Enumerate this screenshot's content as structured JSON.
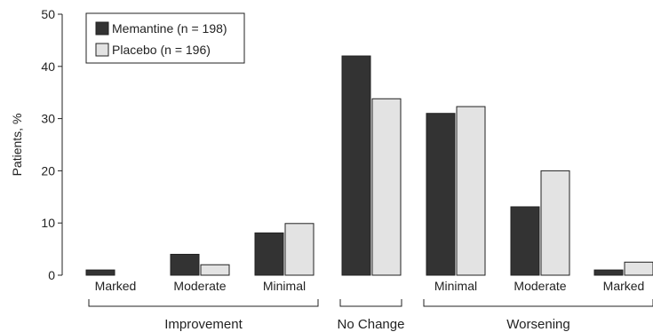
{
  "chart_data": {
    "type": "bar",
    "title": "",
    "xlabel": "",
    "ylabel": "Patients, %",
    "ylim": [
      0,
      50
    ],
    "yticks": [
      0,
      10,
      20,
      30,
      40,
      50
    ],
    "grid": false,
    "legend_position": "top-left",
    "categories": [
      "Marked",
      "Moderate",
      "Minimal",
      "No Change",
      "Minimal",
      "Moderate",
      "Marked"
    ],
    "groups": [
      {
        "label": "Improvement",
        "categories": [
          "Marked",
          "Moderate",
          "Minimal"
        ]
      },
      {
        "label": "No Change",
        "categories": [
          "No Change"
        ]
      },
      {
        "label": "Worsening",
        "categories": [
          "Minimal",
          "Moderate",
          "Marked"
        ]
      }
    ],
    "series": [
      {
        "name": "Memantine (n = 198)",
        "color": "#333333",
        "values": [
          1.0,
          4.0,
          8.1,
          42.0,
          31.0,
          13.1,
          1.0
        ]
      },
      {
        "name": "Placebo (n = 196)",
        "color": "#e3e3e3",
        "values": [
          0,
          2.0,
          9.9,
          33.8,
          32.3,
          20.0,
          2.5
        ]
      }
    ]
  }
}
